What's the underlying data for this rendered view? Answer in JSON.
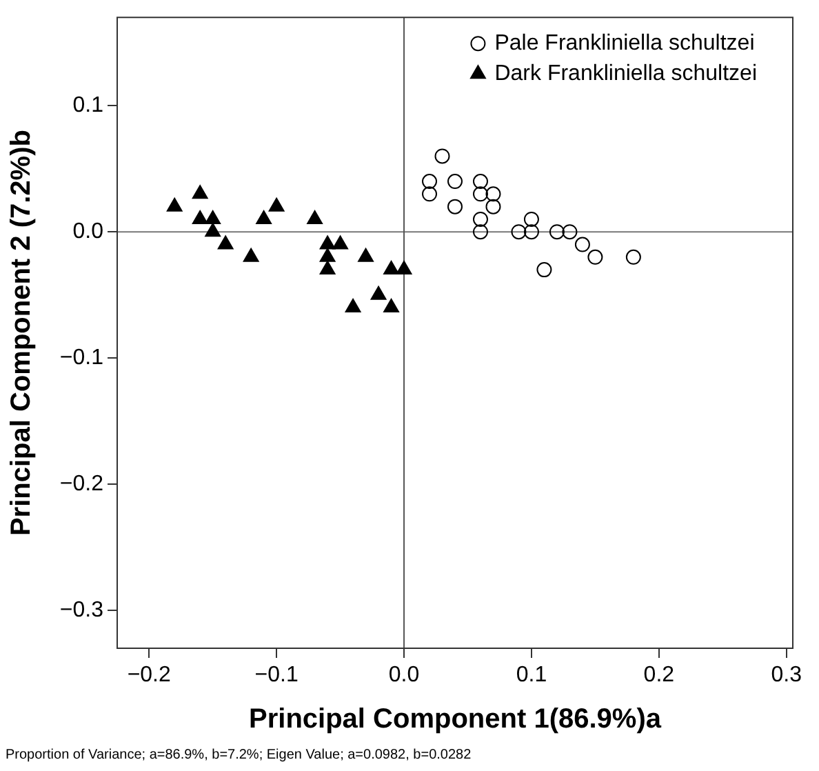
{
  "chart_data": {
    "type": "scatter",
    "xlabel": "Principal Component 1(86.9%)a",
    "ylabel": "Principal Component 2 (7.2%)b",
    "xlim": [
      -0.225,
      0.305
    ],
    "ylim": [
      -0.33,
      0.17
    ],
    "xticks": [
      {
        "value": -0.2,
        "label": "−0.2"
      },
      {
        "value": -0.1,
        "label": "−0.1"
      },
      {
        "value": 0,
        "label": "0.0"
      },
      {
        "value": 0.1,
        "label": "0.1"
      },
      {
        "value": 0.2,
        "label": "0.2"
      },
      {
        "value": 0.3,
        "label": "0.3"
      }
    ],
    "yticks": [
      {
        "value": -0.3,
        "label": "−0.3"
      },
      {
        "value": -0.2,
        "label": "−0.2"
      },
      {
        "value": -0.1,
        "label": "−0.1"
      },
      {
        "value": 0,
        "label": "0.0"
      },
      {
        "value": 0.1,
        "label": "0.1"
      }
    ],
    "grid": false,
    "legend": "top right",
    "ref_lines": [
      {
        "axis": "x",
        "value": 0,
        "color": "#555555"
      },
      {
        "axis": "y",
        "value": 0,
        "color": "#777777"
      }
    ],
    "annotations": [
      "Proportion of Variance; a=86.9%, b=7.2%; Eigen Value; a=0.0982, b=0.0282"
    ],
    "series": [
      {
        "name": "Pale Frankliniella schultzei",
        "color": "#000000",
        "marker": "circle",
        "x": [
          0.02,
          0.02,
          0.03,
          0.04,
          0.04,
          0.06,
          0.06,
          0.06,
          0.06,
          0.07,
          0.07,
          0.09,
          0.1,
          0.1,
          0.12,
          0.13,
          0.14,
          0.15,
          0.18,
          0.11
        ],
        "values": [
          0.04,
          0.03,
          0.06,
          0.04,
          0.02,
          0.04,
          0.03,
          0.01,
          0,
          0.03,
          0.02,
          0,
          0.01,
          0,
          0,
          0,
          -0.01,
          -0.02,
          -0.02,
          -0.03
        ]
      },
      {
        "name": "Dark Frankliniella schultzei",
        "color": "#000000",
        "marker": "triangle",
        "x": [
          -0.18,
          -0.16,
          -0.16,
          -0.15,
          -0.15,
          -0.14,
          -0.12,
          -0.11,
          -0.1,
          -0.07,
          -0.06,
          -0.05,
          -0.06,
          -0.06,
          -0.03,
          -0.04,
          -0.02,
          -0.01,
          -0.01,
          0.0
        ],
        "values": [
          0.02,
          0.03,
          0.01,
          0.01,
          0,
          -0.01,
          -0.02,
          0.01,
          0.02,
          0.01,
          -0.01,
          -0.01,
          -0.02,
          -0.03,
          -0.02,
          -0.06,
          -0.05,
          -0.06,
          -0.03,
          -0.03
        ]
      }
    ]
  }
}
